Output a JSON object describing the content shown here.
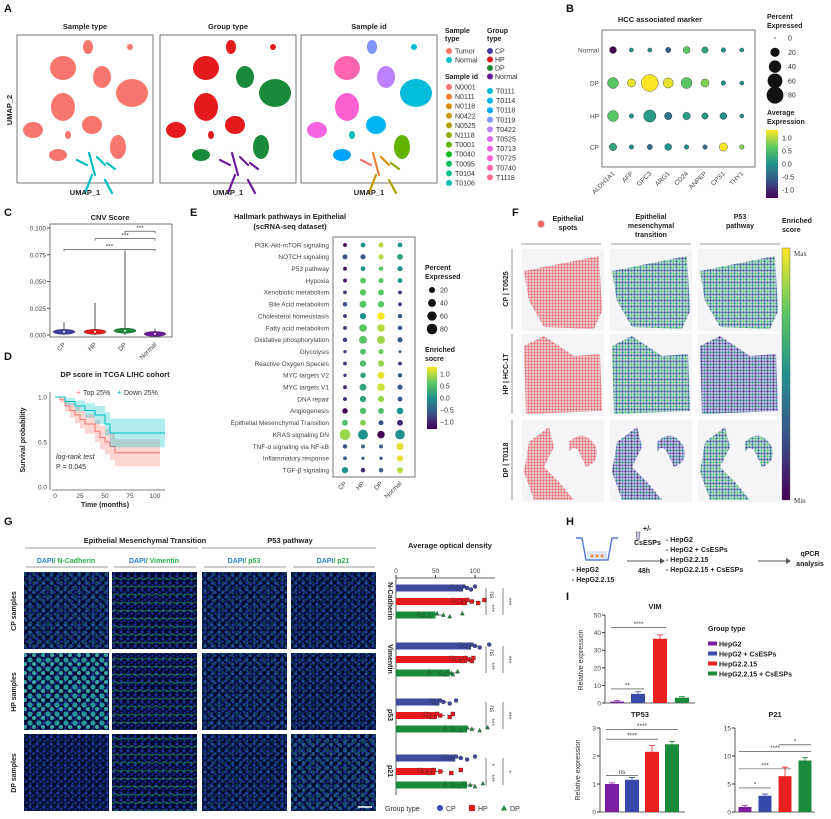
{
  "panel_labels": [
    "A",
    "B",
    "C",
    "D",
    "E",
    "F",
    "G",
    "H",
    "I"
  ],
  "chart_data": [
    {
      "type": "scatter",
      "panel_titles": [
        "Sample type",
        "Group type",
        "Sample id"
      ],
      "xlabel": "UMAP_1",
      "ylabel": "UMAP_2",
      "legend": {
        "sample_type_title": [
          "Sample",
          "type"
        ],
        "sample_type": [
          {
            "label": "Tumor",
            "color": "#f8766d"
          },
          {
            "label": "Normal",
            "color": "#00bfc4"
          }
        ],
        "group_type_title": [
          "Group",
          "type"
        ],
        "group_type": [
          {
            "label": "CP",
            "color": "#3f3f9f"
          },
          {
            "label": "HP",
            "color": "#e41a1c"
          },
          {
            "label": "DP",
            "color": "#1a8a3a"
          },
          {
            "label": "Normal",
            "color": "#6a1b9a"
          }
        ],
        "sample_id_title": "Sample id",
        "sample_id": [
          {
            "label": "N0001",
            "color": "#f8766d"
          },
          {
            "label": "N0111",
            "color": "#ec8239"
          },
          {
            "label": "N0118",
            "color": "#db8e00"
          },
          {
            "label": "N0422",
            "color": "#c59900"
          },
          {
            "label": "N0525",
            "color": "#aea200"
          },
          {
            "label": "N1118",
            "color": "#8fab00"
          },
          {
            "label": "T0001",
            "color": "#64b200"
          },
          {
            "label": "T0040",
            "color": "#00b81b"
          },
          {
            "label": "T0095",
            "color": "#00bd5c"
          },
          {
            "label": "T0104",
            "color": "#00c08b"
          },
          {
            "label": "T0106",
            "color": "#00c0b5"
          },
          {
            "label": "T0111",
            "color": "#00bcd8"
          },
          {
            "label": "T0114",
            "color": "#00b4f0"
          },
          {
            "label": "T0118",
            "color": "#00a5ff"
          },
          {
            "label": "T0119",
            "color": "#7f96ff"
          },
          {
            "label": "T0422",
            "color": "#bc81ff"
          },
          {
            "label": "T0525",
            "color": "#e16ef8"
          },
          {
            "label": "T0713",
            "color": "#f564e3"
          },
          {
            "label": "T0725",
            "color": "#fd61d1"
          },
          {
            "label": "T0740",
            "color": "#ff64b0"
          },
          {
            "label": "T1118",
            "color": "#ff6c91"
          }
        ]
      }
    },
    {
      "type": "dotplot",
      "title": "HCC associated marker",
      "genes": [
        "ALDH1A1",
        "AFP",
        "GPC3",
        "ARG1",
        "CD24",
        "ANPEP",
        "CPS1",
        "THY1"
      ],
      "groups": [
        "Normal",
        "DP",
        "HP",
        "CP"
      ],
      "percent_expressed": [
        [
          10,
          2,
          2,
          5,
          10,
          8,
          3,
          2
        ],
        [
          30,
          15,
          80,
          25,
          30,
          15,
          3,
          2
        ],
        [
          30,
          3,
          40,
          12,
          12,
          8,
          10,
          2
        ],
        [
          12,
          3,
          5,
          10,
          3,
          3,
          15,
          3
        ]
      ],
      "average_expression": [
        [
          -1.3,
          0,
          0,
          -0.5,
          0.6,
          0.2,
          0,
          0
        ],
        [
          0.6,
          1.2,
          1.3,
          1.2,
          0.6,
          0.8,
          0,
          0
        ],
        [
          0.6,
          0,
          0.1,
          -0.3,
          0.1,
          0.1,
          0,
          0
        ],
        [
          0.2,
          0,
          -0.4,
          0,
          0,
          -0.4,
          1.3,
          0.8
        ]
      ],
      "size_legend_title": [
        "Percent",
        "Expressed"
      ],
      "size_legend": [
        0,
        20,
        40,
        60,
        80
      ],
      "color_legend_title": [
        "Average",
        "Expression"
      ],
      "color_ticks": [
        "1.0",
        "0.5",
        "0.0",
        "-0.5",
        "-1.0"
      ],
      "color_range": [
        -1.3,
        1.3
      ]
    },
    {
      "type": "violin",
      "title": "CNV Score",
      "categories": [
        "CP",
        "HP",
        "DP",
        "Normal"
      ],
      "colors": [
        "#3f3fa0",
        "#e41a1c",
        "#1a8a3a",
        "#6a1b9a"
      ],
      "median": [
        0.003,
        0.003,
        0.004,
        0.001
      ],
      "max": [
        0.012,
        0.03,
        0.079,
        0.006
      ],
      "ylim": [
        0,
        0.1
      ],
      "yticks": [
        "0.000",
        "0.025",
        "0.050",
        "0.075",
        "0.100"
      ],
      "comparisons": [
        {
          "a": 0,
          "b": 3,
          "label": "***",
          "y": 0.08
        },
        {
          "a": 1,
          "b": 3,
          "label": "***",
          "y": 0.09
        },
        {
          "a": 2,
          "b": 3,
          "label": "***",
          "y": 0.097
        }
      ]
    },
    {
      "type": "line",
      "title": "DP score in TCGA LIHC cohort",
      "xlabel": "Time (months)",
      "ylabel": "Survival probability",
      "xticks": [
        "0",
        "25",
        "50",
        "75",
        "100"
      ],
      "yticks": [
        "0.0",
        "0.5",
        "1.0"
      ],
      "series": [
        {
          "name": "Top 25%",
          "color": "#f8766d",
          "t": [
            0,
            5,
            10,
            15,
            20,
            25,
            30,
            40,
            45,
            50,
            55,
            60,
            105
          ],
          "s": [
            1,
            0.97,
            0.9,
            0.85,
            0.8,
            0.75,
            0.7,
            0.62,
            0.55,
            0.5,
            0.45,
            0.38,
            0.38
          ],
          "ci": [
            0,
            0.03,
            0.06,
            0.08,
            0.09,
            0.1,
            0.11,
            0.12,
            0.13,
            0.14,
            0.15,
            0.15,
            0.16
          ]
        },
        {
          "name": "Down 25%",
          "color": "#00bfc4",
          "t": [
            0,
            10,
            20,
            30,
            40,
            50,
            55,
            110
          ],
          "s": [
            1,
            0.95,
            0.9,
            0.85,
            0.8,
            0.7,
            0.6,
            0.6
          ],
          "ci": [
            0,
            0.04,
            0.06,
            0.08,
            0.1,
            0.13,
            0.16,
            0.17
          ]
        }
      ],
      "annotation": [
        "log-rank test",
        "P = 0.045"
      ]
    },
    {
      "type": "dotplot",
      "title": [
        "Hallmark pathways in Epithelial",
        "(scRNA-seq dataset)"
      ],
      "groups": [
        "CP",
        "HP",
        "DP",
        "Normal"
      ],
      "pathways": [
        "PI3K-Akt-mTOR signaling",
        "NOTCH signaling",
        "P53 pathway",
        "Hypoxia",
        "Xenobiotic metabolism",
        "Bile Acid metabolism",
        "Cholesterol homeostasis",
        "Fatty acid metabolism",
        "Oxidative phosphorylation",
        "Glycolysis",
        "Reactive Oxygen Species",
        "MYC targets V2",
        "MYC targets V1",
        "DNA repair",
        "Angiogenesis",
        "Epithelial Mesenchymal Transition",
        "KRAS signaling DN",
        "TNF-α signaling via NF-κB",
        "Inflammatory response",
        "TGF-β signaling"
      ],
      "highlighted": [
        "P53 pathway",
        "Epithelial Mesenchymal Transition"
      ],
      "highlight_color": "#e8202a",
      "percent_expressed": [
        [
          5,
          10,
          12,
          10
        ],
        [
          12,
          12,
          12,
          18
        ],
        [
          5,
          10,
          8,
          12
        ],
        [
          5,
          18,
          12,
          10
        ],
        [
          5,
          22,
          18,
          5
        ],
        [
          8,
          28,
          22,
          5
        ],
        [
          5,
          22,
          35,
          8
        ],
        [
          5,
          35,
          35,
          8
        ],
        [
          8,
          40,
          40,
          12
        ],
        [
          3,
          18,
          12,
          2
        ],
        [
          5,
          22,
          22,
          5
        ],
        [
          3,
          15,
          28,
          8
        ],
        [
          5,
          28,
          35,
          12
        ],
        [
          5,
          22,
          22,
          10
        ],
        [
          15,
          22,
          18,
          25
        ],
        [
          18,
          18,
          12,
          18
        ],
        [
          85,
          70,
          35,
          65
        ],
        [
          8,
          5,
          5,
          30
        ],
        [
          5,
          3,
          3,
          20
        ],
        [
          22,
          8,
          8,
          18
        ]
      ],
      "enriched_score": [
        [
          -1.2,
          0,
          1,
          0
        ],
        [
          -0.6,
          -0.6,
          1,
          0.2
        ],
        [
          -1.2,
          0,
          0.6,
          0
        ],
        [
          -1.2,
          0.6,
          0.6,
          0
        ],
        [
          -0.8,
          0.6,
          0.6,
          -0.8
        ],
        [
          -0.7,
          0.6,
          0.6,
          -0.8
        ],
        [
          -0.8,
          0,
          1.3,
          -0.6
        ],
        [
          -0.8,
          0.6,
          1,
          -0.6
        ],
        [
          -0.8,
          0.6,
          0.9,
          -0.6
        ],
        [
          -0.8,
          0.5,
          0.7,
          -0.5
        ],
        [
          -0.8,
          0.5,
          0.9,
          -0.8
        ],
        [
          -0.8,
          0.2,
          1.2,
          -0.5
        ],
        [
          -1,
          0.2,
          1.1,
          -0.6
        ],
        [
          -1,
          0.2,
          0.9,
          -0.6
        ],
        [
          -1.4,
          0.5,
          0.5,
          0
        ],
        [
          0.5,
          0.8,
          -0.6,
          -1
        ],
        [
          0.9,
          0,
          -1.3,
          0
        ],
        [
          -0.6,
          -0.5,
          -0.6,
          1.2
        ],
        [
          -0.5,
          -0.5,
          -0.6,
          1.2
        ],
        [
          0,
          -1,
          -0.5,
          1
        ]
      ],
      "size_legend_title": [
        "Percent",
        "Expressed"
      ],
      "size_legend": [
        20,
        40,
        60,
        80
      ],
      "color_legend_title": [
        "Enriched",
        "socre"
      ],
      "color_ticks": [
        "1.0",
        "0.5",
        "0.0",
        "−0.5",
        "−1.0"
      ],
      "color_range": [
        -1.3,
        1.3
      ]
    },
    {
      "type": "heatmap",
      "columns": [
        "Epithelial spots",
        [
          "Epithelial",
          "mesenchymal",
          "transition"
        ],
        [
          "P53",
          "pathway"
        ]
      ],
      "col0_lines": [
        "Epithelial",
        "spots"
      ],
      "rows": [
        "CP | T0525",
        "HP | HCC-1T",
        "DP | T0118"
      ],
      "colorbar_title": [
        "Enriched",
        "score"
      ],
      "colorbar_max": "Max",
      "colorbar_min": "Min",
      "spot_color": "#ee6b6b"
    },
    {
      "type": "bar",
      "section_titles": [
        "Epithelial Mesenchymal Transition",
        "P53 pathway"
      ],
      "stains": [
        [
          "DAPI",
          "/ N-Cadherin"
        ],
        [
          "DAPI",
          "/ Vimentin"
        ],
        [
          "DAPI",
          "/ p53"
        ],
        [
          "DAPI",
          "/ p21"
        ]
      ],
      "sample_rows": [
        "CP samples",
        "HP samples",
        "DP samples"
      ],
      "title": "Average optical density",
      "xticks": [
        "0",
        "50",
        "100"
      ],
      "xlim": [
        0,
        130
      ],
      "categories": [
        "N-Cadherin",
        "Vimentin",
        "p53",
        "p21"
      ],
      "series": [
        {
          "name": "CP",
          "color": "#3f4a9f",
          "values": [
            85,
            95,
            55,
            75
          ],
          "points": [
            [
              70,
              78,
              82,
              86,
              90,
              95,
              100
            ],
            [
              82,
              88,
              92,
              96,
              100,
              106,
              118
            ],
            [
              45,
              48,
              52,
              56,
              60,
              68,
              76
            ],
            [
              62,
              68,
              72,
              76,
              82,
              90,
              100
            ]
          ]
        },
        {
          "name": "HP",
          "color": "#e41a1c",
          "values": [
            90,
            90,
            52,
            50
          ],
          "points": [
            [
              72,
              80,
              86,
              90,
              96,
              104,
              112
            ],
            [
              70,
              78,
              84,
              88,
              92,
              96,
              98
            ],
            [
              38,
              42,
              46,
              52,
              56,
              68,
              72
            ],
            [
              30,
              36,
              42,
              48,
              56,
              70,
              82
            ]
          ]
        },
        {
          "name": "DP",
          "color": "#1a8a3a",
          "values": [
            50,
            68,
            90,
            90
          ],
          "points": [
            [
              28,
              34,
              42,
              52,
              60,
              68,
              84
            ],
            [
              42,
              56,
              62,
              66,
              70,
              72,
              78
            ],
            [
              62,
              72,
              82,
              90,
              96,
              106,
              116
            ],
            [
              62,
              72,
              80,
              86,
              94,
              100,
              110
            ]
          ]
        }
      ],
      "comparisons": [
        [
          "ns",
          "***",
          "***"
        ],
        [
          "ns",
          "***",
          "***"
        ],
        [
          "ns",
          "***",
          "***"
        ],
        [
          "*",
          "***",
          "*"
        ]
      ],
      "legend_title": "Group type"
    },
    {
      "type": "line",
      "axis_placeholder": true,
      "series": [],
      "placeholder_note": ""
    },
    {
      "type": "bar",
      "title": "VIM",
      "ylabel": "Relative expression",
      "ylim": [
        0,
        50
      ],
      "yticks": [
        "0",
        "10",
        "20",
        "30",
        "40",
        "50"
      ],
      "categories": [
        "HepG2",
        "HepG2 + CsESPs",
        "HepG2.2.15",
        "HepG2.2.15 + CsESPs"
      ],
      "values": [
        0.8,
        5.2,
        36.5,
        3
      ],
      "errors": [
        0.5,
        1.2,
        2.2,
        0.6
      ],
      "comparisons": [
        {
          "a": 0,
          "b": 1,
          "label": "**",
          "y": 8
        },
        {
          "a": 0,
          "b": 2,
          "label": "****",
          "y": 43
        }
      ],
      "legend_title": "Group type"
    },
    {
      "type": "bar",
      "title": "TP53",
      "ylabel": "Relative expression",
      "ylim": [
        0,
        3
      ],
      "yticks": [
        "0",
        "1",
        "2",
        "3"
      ],
      "values": [
        1,
        1.15,
        2.15,
        2.42
      ],
      "errors": [
        0.04,
        0.08,
        0.22,
        0.1
      ],
      "comparisons": [
        {
          "a": 0,
          "b": 1,
          "label": "ns",
          "y": 1.3
        },
        {
          "a": 0,
          "b": 2,
          "label": "****",
          "y": 2.6
        },
        {
          "a": 0,
          "b": 3,
          "label": "****",
          "y": 2.95
        }
      ]
    },
    {
      "type": "bar",
      "title": "P21",
      "ylim": [
        0,
        15
      ],
      "yticks": [
        "0",
        "5",
        "10",
        "15"
      ],
      "values": [
        0.9,
        2.9,
        6.4,
        9.2
      ],
      "errors": [
        0.3,
        0.3,
        1.6,
        0.5
      ],
      "comparisons": [
        {
          "a": 0,
          "b": 1,
          "label": "*",
          "y": 4.3
        },
        {
          "a": 0,
          "b": 2,
          "label": "***",
          "y": 7.7
        },
        {
          "a": 0,
          "b": 3,
          "label": "****",
          "y": 10.8
        },
        {
          "a": 2,
          "b": 3,
          "label": "*",
          "y": 12
        }
      ]
    }
  ],
  "qpcr_colors": [
    "#7b1fa2",
    "#3949ab",
    "#e82020",
    "#1b8a3a"
  ],
  "workflow": {
    "start_cells": [
      "- HepG2",
      "- HepG2.2.15"
    ],
    "treatment": [
      "+/-",
      "CsESPs"
    ],
    "duration": "48h",
    "groups": [
      "- HepG2",
      "- HepG2 + CsESPs",
      "- HepG2.2.15",
      "- HepG2.2.15 + CsESPs"
    ],
    "readout": [
      "qPCR",
      "analysis"
    ]
  }
}
